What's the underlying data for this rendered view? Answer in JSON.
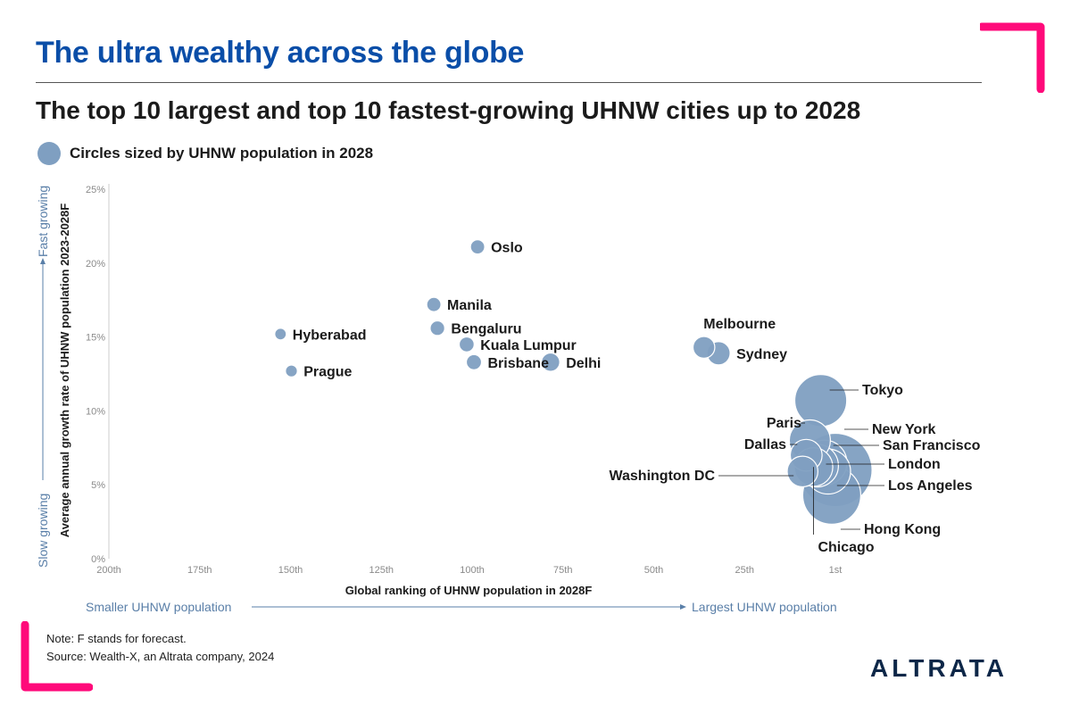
{
  "header": {
    "title": "The ultra wealthy across the globe",
    "subtitle": "The top 10 largest and top 10 fastest-growing UHNW cities up to 2028"
  },
  "legend": {
    "label": "Circles sized by UHNW population in 2028"
  },
  "footer": {
    "note": "Note: F stands for forecast.",
    "source": "Source: Wealth-X, an Altrata company, 2024",
    "brand": "ALTRATA"
  },
  "colors": {
    "title": "#0a4ea8",
    "bubble": "#7f9fc1",
    "bubble_stroke": "#ffffff",
    "axis_text": "#5a7fa8",
    "accent": "#ff0a7a"
  },
  "chart_data": {
    "type": "scatter",
    "title": "",
    "xlabel": "Global ranking of UHNW population in 2028F",
    "ylabel": "Average annual growth rate of UHNW population 2023-2028F",
    "x_ticks": [
      "200th",
      "175th",
      "150th",
      "125th",
      "100th",
      "75th",
      "50th",
      "25th",
      "1st"
    ],
    "y_ticks": [
      "0%",
      "5%",
      "10%",
      "15%",
      "20%",
      "25%"
    ],
    "xlim": [
      200,
      1
    ],
    "ylim": [
      0,
      25
    ],
    "x_direction_left": "Smaller UHNW population",
    "x_direction_right": "Largest UHNW population",
    "y_direction_bottom": "Slow growing",
    "y_direction_top": "Fast growing",
    "grid": false,
    "size_encoding": "UHNW population in 2028",
    "points": [
      {
        "name": "Oslo",
        "rank": 99,
        "growth": 21.1,
        "size": 3
      },
      {
        "name": "Manila",
        "rank": 111,
        "growth": 17.2,
        "size": 3
      },
      {
        "name": "Bengaluru",
        "rank": 110,
        "growth": 15.6,
        "size": 3.2
      },
      {
        "name": "Kuala Lumpur",
        "rank": 102,
        "growth": 14.5,
        "size": 3.3
      },
      {
        "name": "Brisbane",
        "rank": 100,
        "growth": 13.3,
        "size": 3.4
      },
      {
        "name": "Delhi",
        "rank": 79,
        "growth": 13.3,
        "size": 5
      },
      {
        "name": "Hyberabad",
        "rank": 153,
        "growth": 15.2,
        "size": 2
      },
      {
        "name": "Prague",
        "rank": 150,
        "growth": 12.7,
        "size": 2.1
      },
      {
        "name": "Melbourne",
        "rank": 37,
        "growth": 14.3,
        "size": 7
      },
      {
        "name": "Sydney",
        "rank": 33,
        "growth": 13.9,
        "size": 8
      },
      {
        "name": "Tokyo",
        "rank": 5,
        "growth": 10.7,
        "size": 40
      },
      {
        "name": "Paris",
        "rank": 8,
        "growth": 8.0,
        "size": 25
      },
      {
        "name": "New York",
        "rank": 1,
        "growth": 6.0,
        "size": 80
      },
      {
        "name": "San Francisco",
        "rank": 4,
        "growth": 6.5,
        "size": 30
      },
      {
        "name": "London",
        "rank": 6,
        "growth": 6.3,
        "size": 27
      },
      {
        "name": "Los Angeles",
        "rank": 3,
        "growth": 5.9,
        "size": 30
      },
      {
        "name": "Hong Kong",
        "rank": 2,
        "growth": 4.3,
        "size": 50
      },
      {
        "name": "Chicago",
        "rank": 7,
        "growth": 6.2,
        "size": 22
      },
      {
        "name": "Dallas",
        "rank": 9,
        "growth": 7.0,
        "size": 15
      },
      {
        "name": "Washington DC",
        "rank": 10,
        "growth": 5.9,
        "size": 14
      }
    ]
  }
}
